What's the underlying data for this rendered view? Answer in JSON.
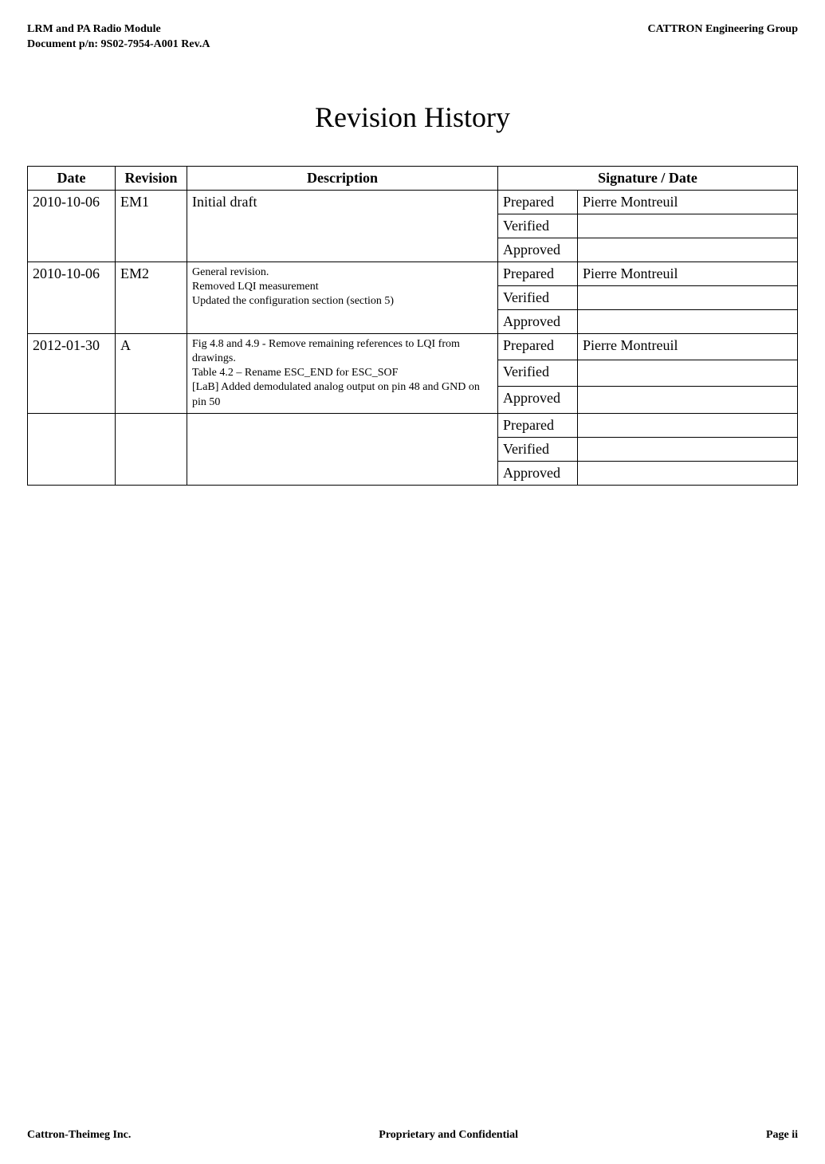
{
  "header": {
    "left_line1": "LRM and PA Radio Module",
    "left_line2": "Document p/n: 9S02-7954-A001 Rev.A",
    "right": "CATTRON Engineering Group"
  },
  "title": "Revision History",
  "table": {
    "headers": {
      "date": "Date",
      "revision": "Revision",
      "description": "Description",
      "signature": "Signature / Date"
    },
    "sig_labels": {
      "prepared": "Prepared",
      "verified": "Verified",
      "approved": "Approved"
    },
    "rows": [
      {
        "date": "2010-10-06",
        "revision": "EM1",
        "description": "Initial draft",
        "desc_class": "",
        "prepared": "Pierre Montreuil",
        "verified": "",
        "approved": ""
      },
      {
        "date": "2010-10-06",
        "revision": "EM2",
        "description": "General revision.\nRemoved LQI measurement\nUpdated the configuration section (section 5)",
        "desc_class": "small",
        "prepared": "Pierre Montreuil",
        "verified": "",
        "approved": ""
      },
      {
        "date": "2012-01-30",
        "revision": "A",
        "description": "Fig 4.8 and 4.9 - Remove remaining references to LQI from drawings.\nTable 4.2 – Rename ESC_END for ESC_SOF\n[LaB] Added demodulated analog output on pin 48 and GND on pin 50",
        "desc_class": "small",
        "prepared": "Pierre Montreuil",
        "verified": "",
        "approved": ""
      },
      {
        "date": "",
        "revision": "",
        "description": "",
        "desc_class": "",
        "prepared": "",
        "verified": "",
        "approved": ""
      }
    ]
  },
  "footer": {
    "left": "Cattron-Theimeg Inc.",
    "center": "Proprietary and Confidential",
    "right": "Page  ii"
  }
}
